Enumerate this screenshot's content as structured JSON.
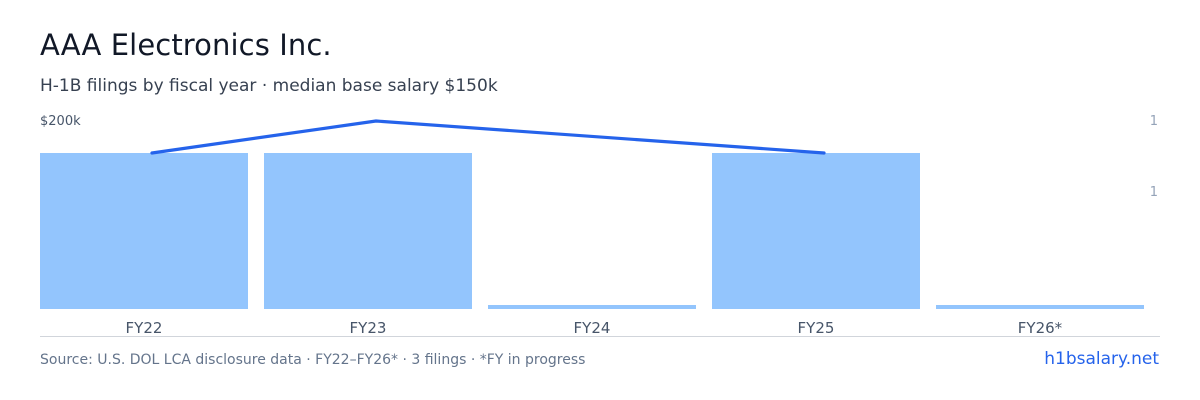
{
  "header": {
    "title": "AAA Electronics Inc.",
    "subtitle": "H-1B filings by fiscal year · median base salary $150k"
  },
  "chart_data": {
    "type": "bar",
    "categories": [
      "FY22",
      "FY23",
      "FY24",
      "FY25",
      "FY26*"
    ],
    "series": [
      {
        "type": "bar",
        "axis": "right",
        "values": [
          1,
          1,
          0,
          1,
          0
        ]
      },
      {
        "type": "line",
        "axis": "left",
        "values": [
          150000,
          200000,
          null,
          150000,
          null
        ]
      }
    ],
    "left_axis": {
      "ticks": [
        "$200k"
      ],
      "range": [
        0,
        200000
      ]
    },
    "right_axis": {
      "ticks": [
        "1",
        "1"
      ],
      "range": [
        0,
        1
      ]
    },
    "colors": {
      "bar": "#93c5fd",
      "line": "#2563eb",
      "axis": "#d1d5db"
    },
    "grid": false
  },
  "footer": {
    "source": "Source: U.S. DOL LCA disclosure data · FY22–FY26* · 3 filings · *FY in progress",
    "brand": "h1bsalary.net"
  }
}
